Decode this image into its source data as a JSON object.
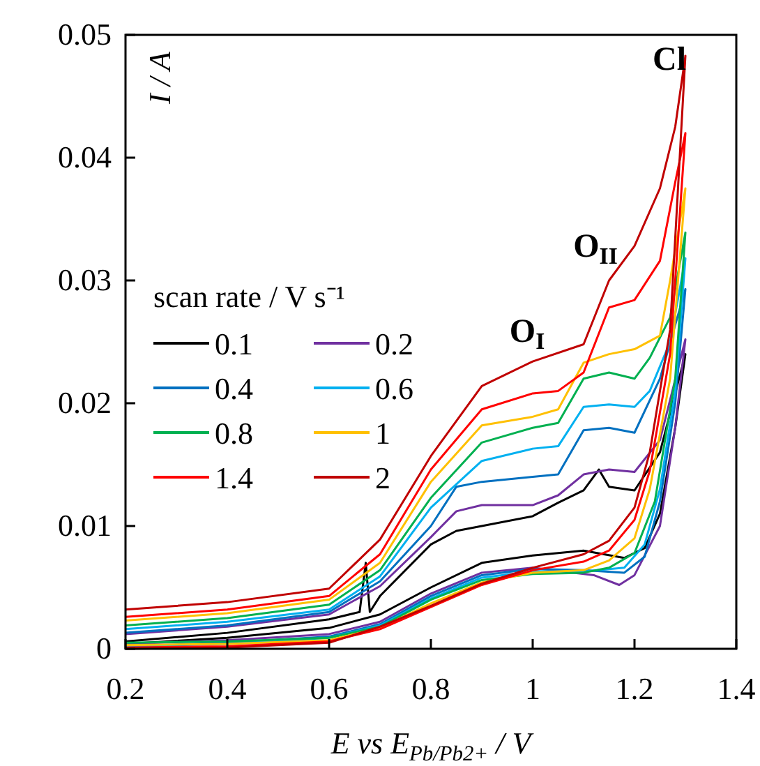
{
  "chart_data": {
    "type": "line",
    "xlabel": "E vs E$_{Pb/Pb2+}$ / V",
    "ylabel": "I / A",
    "legend_title": "scan rate / V s⁻¹",
    "legend": "left",
    "grid": false,
    "line_style": "solid",
    "marker": "none",
    "xlim": [
      0.2,
      1.4
    ],
    "xticks": [
      0.2,
      0.4,
      0.6,
      0.8,
      1,
      1.2,
      1.4
    ],
    "ylim": [
      0,
      0.05
    ],
    "yticks": [
      0,
      0.01,
      0.02,
      0.03,
      0.04,
      0.05
    ],
    "annotations": [
      "O$_{I}$",
      "O$_{II}$",
      "Cl"
    ],
    "series": [
      {
        "name": "0.1",
        "color": "#000000",
        "x": [
          0.2,
          0.4,
          0.6,
          0.66,
          0.672,
          0.68,
          0.7,
          0.8,
          0.85,
          0.9,
          1.0,
          1.05,
          1.1,
          1.13,
          1.15,
          1.2,
          1.25,
          1.3,
          1.28,
          1.25,
          1.22,
          1.18,
          1.1,
          1.0,
          0.9,
          0.8,
          0.7,
          0.6,
          0.4,
          0.2
        ],
        "values": [
          0.0006,
          0.0013,
          0.0024,
          0.003,
          0.007,
          0.003,
          0.0043,
          0.0085,
          0.0096,
          0.01,
          0.0108,
          0.0119,
          0.0129,
          0.0146,
          0.0132,
          0.0129,
          0.016,
          0.024,
          0.018,
          0.011,
          0.0082,
          0.0074,
          0.008,
          0.0076,
          0.007,
          0.005,
          0.0028,
          0.0017,
          0.0009,
          0.0004
        ]
      },
      {
        "name": "0.2",
        "color": "#7030a0",
        "x": [
          0.2,
          0.4,
          0.6,
          0.7,
          0.8,
          0.85,
          0.9,
          1.0,
          1.05,
          1.1,
          1.15,
          1.2,
          1.25,
          1.3,
          1.28,
          1.25,
          1.2,
          1.17,
          1.12,
          1.0,
          0.9,
          0.8,
          0.7,
          0.6,
          0.4,
          0.2
        ],
        "values": [
          0.0012,
          0.0018,
          0.0028,
          0.0051,
          0.0091,
          0.0112,
          0.0117,
          0.0117,
          0.0125,
          0.0142,
          0.0146,
          0.0144,
          0.017,
          0.0252,
          0.018,
          0.01,
          0.006,
          0.0052,
          0.006,
          0.0066,
          0.0062,
          0.0045,
          0.0022,
          0.0012,
          0.0007,
          0.0004
        ]
      },
      {
        "name": "0.4",
        "color": "#0070c0",
        "x": [
          0.2,
          0.4,
          0.6,
          0.7,
          0.8,
          0.85,
          0.9,
          1.0,
          1.05,
          1.1,
          1.15,
          1.2,
          1.25,
          1.3,
          1.28,
          1.25,
          1.22,
          1.18,
          1.1,
          1.0,
          0.9,
          0.8,
          0.7,
          0.6,
          0.4,
          0.2
        ],
        "values": [
          0.0013,
          0.0019,
          0.003,
          0.0055,
          0.01,
          0.0132,
          0.0136,
          0.014,
          0.0142,
          0.0178,
          0.018,
          0.0176,
          0.022,
          0.0293,
          0.02,
          0.012,
          0.0075,
          0.0062,
          0.0064,
          0.0065,
          0.006,
          0.0043,
          0.002,
          0.001,
          0.0005,
          0.0002
        ]
      },
      {
        "name": "0.6",
        "color": "#00b0f0",
        "x": [
          0.2,
          0.4,
          0.6,
          0.7,
          0.8,
          0.9,
          1.0,
          1.05,
          1.1,
          1.15,
          1.2,
          1.23,
          1.27,
          1.3,
          1.28,
          1.25,
          1.22,
          1.18,
          1.1,
          1.0,
          0.9,
          0.8,
          0.7,
          0.6,
          0.4,
          0.2
        ],
        "values": [
          0.0016,
          0.0022,
          0.0032,
          0.0059,
          0.0115,
          0.0153,
          0.0163,
          0.0165,
          0.0197,
          0.0199,
          0.0197,
          0.021,
          0.025,
          0.0318,
          0.021,
          0.013,
          0.0085,
          0.0066,
          0.0063,
          0.0063,
          0.0058,
          0.0041,
          0.0019,
          0.0009,
          0.0004,
          0.0002
        ]
      },
      {
        "name": "0.8",
        "color": "#00b050",
        "x": [
          0.2,
          0.4,
          0.6,
          0.7,
          0.8,
          0.9,
          1.0,
          1.05,
          1.1,
          1.15,
          1.2,
          1.23,
          1.27,
          1.3,
          1.28,
          1.24,
          1.2,
          1.15,
          1.1,
          1.0,
          0.9,
          0.8,
          0.7,
          0.6,
          0.4,
          0.2
        ],
        "values": [
          0.0019,
          0.0025,
          0.0036,
          0.0064,
          0.0123,
          0.0168,
          0.018,
          0.0184,
          0.022,
          0.0225,
          0.022,
          0.0237,
          0.027,
          0.0339,
          0.022,
          0.012,
          0.0078,
          0.0066,
          0.0062,
          0.0061,
          0.0056,
          0.004,
          0.0018,
          0.0009,
          0.0006,
          0.0005
        ]
      },
      {
        "name": "1",
        "color": "#ffc000",
        "x": [
          0.2,
          0.4,
          0.6,
          0.7,
          0.8,
          0.9,
          1.0,
          1.05,
          1.1,
          1.15,
          1.2,
          1.25,
          1.27,
          1.3,
          1.27,
          1.23,
          1.2,
          1.15,
          1.1,
          1.0,
          0.9,
          0.8,
          0.7,
          0.6,
          0.4,
          0.2
        ],
        "values": [
          0.0023,
          0.0029,
          0.004,
          0.007,
          0.0136,
          0.0182,
          0.0189,
          0.0195,
          0.0233,
          0.024,
          0.0244,
          0.0255,
          0.03,
          0.0375,
          0.022,
          0.013,
          0.009,
          0.0072,
          0.0064,
          0.0062,
          0.0054,
          0.0037,
          0.0017,
          0.0007,
          0.0004,
          0.0003
        ]
      },
      {
        "name": "1.4",
        "color": "#ff0000",
        "x": [
          0.2,
          0.4,
          0.6,
          0.7,
          0.8,
          0.9,
          1.0,
          1.05,
          1.1,
          1.15,
          1.2,
          1.25,
          1.28,
          1.3,
          1.27,
          1.23,
          1.2,
          1.15,
          1.1,
          1.0,
          0.9,
          0.8,
          0.7,
          0.6,
          0.4,
          0.2
        ],
        "values": [
          0.0026,
          0.0032,
          0.0043,
          0.0077,
          0.0146,
          0.0195,
          0.0208,
          0.021,
          0.0225,
          0.0278,
          0.0284,
          0.0316,
          0.038,
          0.042,
          0.024,
          0.0145,
          0.0105,
          0.008,
          0.0071,
          0.0064,
          0.0052,
          0.0034,
          0.0016,
          0.0006,
          0.0002,
          0.0001
        ]
      },
      {
        "name": "2",
        "color": "#c00000",
        "x": [
          0.2,
          0.4,
          0.6,
          0.7,
          0.8,
          0.9,
          1.0,
          1.1,
          1.15,
          1.2,
          1.25,
          1.28,
          1.3,
          1.27,
          1.23,
          1.2,
          1.15,
          1.1,
          1.0,
          0.9,
          0.8,
          0.7,
          0.6,
          0.4,
          0.2
        ],
        "values": [
          0.0032,
          0.0038,
          0.0049,
          0.0089,
          0.0157,
          0.0214,
          0.0234,
          0.0248,
          0.03,
          0.0328,
          0.0375,
          0.0425,
          0.0483,
          0.026,
          0.016,
          0.0115,
          0.0088,
          0.0077,
          0.0066,
          0.0053,
          0.0035,
          0.0018,
          0.0005,
          0.0001,
          0
        ]
      }
    ]
  }
}
